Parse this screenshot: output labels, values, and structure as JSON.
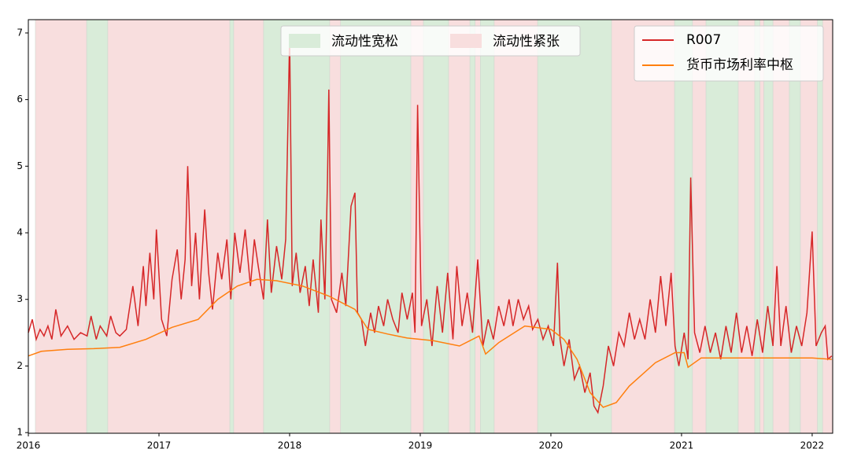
{
  "chart_data": {
    "type": "line",
    "xlim": [
      2016,
      2022.157
    ],
    "xticks": [
      2016,
      2017,
      2018,
      2019,
      2020,
      2021,
      2022
    ],
    "ylim": [
      0.99,
      7.2
    ],
    "yticks": [
      1,
      2,
      3,
      4,
      5,
      6,
      7
    ],
    "bands": [
      {
        "name": "流动性宽松",
        "color": "#d9ecd9",
        "spans": [
          [
            2016.446,
            2016.608
          ],
          [
            2017.542,
            2017.572
          ],
          [
            2017.8,
            2018.307
          ],
          [
            2018.39,
            2018.928
          ],
          [
            2019.024,
            2019.217
          ],
          [
            2019.38,
            2019.42
          ],
          [
            2019.46,
            2019.566
          ],
          [
            2019.898,
            2020.464
          ],
          [
            2020.946,
            2021.084
          ],
          [
            2021.187,
            2021.434
          ],
          [
            2021.56,
            2021.6
          ],
          [
            2021.63,
            2021.7
          ],
          [
            2021.825,
            2021.91
          ],
          [
            2022.04,
            2022.08
          ]
        ]
      },
      {
        "name": "流动性紧张",
        "color": "#f8dede",
        "spans": [
          [
            2016.054,
            2016.446
          ],
          [
            2016.608,
            2017.542
          ],
          [
            2017.572,
            2017.8
          ],
          [
            2018.307,
            2018.39
          ],
          [
            2018.928,
            2019.024
          ],
          [
            2019.217,
            2019.38
          ],
          [
            2019.42,
            2019.46
          ],
          [
            2019.566,
            2019.898
          ],
          [
            2020.464,
            2020.946
          ],
          [
            2021.084,
            2021.187
          ],
          [
            2021.434,
            2021.56
          ],
          [
            2021.6,
            2021.63
          ],
          [
            2021.7,
            2021.825
          ],
          [
            2021.91,
            2022.04
          ],
          [
            2022.08,
            2022.157
          ]
        ]
      }
    ],
    "series": [
      {
        "name": "R007",
        "color": "#d62728",
        "x": [
          2016.0,
          2016.03,
          2016.06,
          2016.09,
          2016.12,
          2016.15,
          2016.18,
          2016.21,
          2016.25,
          2016.3,
          2016.35,
          2016.4,
          2016.45,
          2016.48,
          2016.52,
          2016.55,
          2016.6,
          2016.63,
          2016.67,
          2016.7,
          2016.75,
          2016.8,
          2016.84,
          2016.88,
          2016.9,
          2016.93,
          2016.96,
          2016.98,
          2017.02,
          2017.06,
          2017.1,
          2017.14,
          2017.17,
          2017.2,
          2017.22,
          2017.25,
          2017.28,
          2017.31,
          2017.35,
          2017.38,
          2017.41,
          2017.45,
          2017.48,
          2017.52,
          2017.55,
          2017.58,
          2017.62,
          2017.66,
          2017.7,
          2017.73,
          2017.76,
          2017.8,
          2017.83,
          2017.86,
          2017.9,
          2017.94,
          2017.97,
          2018.0,
          2018.02,
          2018.05,
          2018.08,
          2018.12,
          2018.15,
          2018.18,
          2018.22,
          2018.24,
          2018.27,
          2018.29,
          2018.3,
          2018.32,
          2018.36,
          2018.4,
          2018.43,
          2018.47,
          2018.5,
          2018.52,
          2018.55,
          2018.58,
          2018.62,
          2018.65,
          2018.68,
          2018.72,
          2018.75,
          2018.79,
          2018.83,
          2018.86,
          2018.9,
          2018.94,
          2018.96,
          2018.98,
          2019.01,
          2019.05,
          2019.09,
          2019.13,
          2019.17,
          2019.21,
          2019.25,
          2019.28,
          2019.32,
          2019.36,
          2019.4,
          2019.44,
          2019.48,
          2019.52,
          2019.56,
          2019.6,
          2019.64,
          2019.68,
          2019.71,
          2019.75,
          2019.79,
          2019.83,
          2019.86,
          2019.9,
          2019.94,
          2019.98,
          2020.02,
          2020.05,
          2020.07,
          2020.1,
          2020.14,
          2020.18,
          2020.22,
          2020.26,
          2020.3,
          2020.33,
          2020.36,
          2020.4,
          2020.44,
          2020.48,
          2020.52,
          2020.56,
          2020.6,
          2020.64,
          2020.68,
          2020.72,
          2020.76,
          2020.8,
          2020.84,
          2020.88,
          2020.92,
          2020.95,
          2020.98,
          2021.02,
          2021.05,
          2021.07,
          2021.1,
          2021.14,
          2021.18,
          2021.22,
          2021.26,
          2021.3,
          2021.34,
          2021.38,
          2021.42,
          2021.46,
          2021.5,
          2021.54,
          2021.58,
          2021.62,
          2021.66,
          2021.7,
          2021.73,
          2021.76,
          2021.8,
          2021.84,
          2021.88,
          2021.92,
          2021.96,
          2022.0,
          2022.03,
          2022.07,
          2022.1,
          2022.12,
          2022.15
        ],
        "values": [
          2.5,
          2.7,
          2.4,
          2.55,
          2.45,
          2.6,
          2.4,
          2.85,
          2.45,
          2.6,
          2.4,
          2.5,
          2.45,
          2.75,
          2.4,
          2.6,
          2.45,
          2.75,
          2.5,
          2.45,
          2.55,
          3.2,
          2.6,
          3.5,
          2.9,
          3.7,
          3.0,
          4.05,
          2.7,
          2.45,
          3.3,
          3.75,
          3.0,
          3.6,
          5.0,
          3.2,
          4.0,
          3.0,
          4.35,
          3.4,
          2.85,
          3.7,
          3.3,
          3.9,
          3.0,
          4.0,
          3.4,
          4.05,
          3.2,
          3.9,
          3.5,
          3.0,
          4.2,
          3.1,
          3.8,
          3.3,
          3.9,
          6.95,
          3.2,
          3.7,
          3.1,
          3.5,
          2.9,
          3.6,
          2.8,
          4.2,
          3.0,
          4.8,
          6.15,
          3.0,
          2.8,
          3.4,
          2.9,
          4.4,
          4.6,
          2.8,
          2.7,
          2.3,
          2.8,
          2.5,
          2.9,
          2.6,
          3.0,
          2.7,
          2.5,
          3.1,
          2.7,
          3.1,
          2.5,
          5.92,
          2.6,
          3.0,
          2.3,
          3.2,
          2.5,
          3.4,
          2.4,
          3.5,
          2.6,
          3.1,
          2.5,
          3.6,
          2.3,
          2.7,
          2.4,
          2.9,
          2.6,
          3.0,
          2.6,
          3.0,
          2.7,
          2.9,
          2.55,
          2.7,
          2.4,
          2.6,
          2.3,
          3.55,
          2.4,
          2.0,
          2.4,
          1.8,
          2.0,
          1.6,
          1.9,
          1.4,
          1.3,
          1.7,
          2.3,
          2.0,
          2.5,
          2.3,
          2.8,
          2.4,
          2.7,
          2.4,
          3.0,
          2.5,
          3.35,
          2.6,
          3.4,
          2.3,
          2.0,
          2.5,
          2.1,
          4.83,
          2.5,
          2.2,
          2.6,
          2.2,
          2.5,
          2.1,
          2.6,
          2.2,
          2.8,
          2.2,
          2.6,
          2.15,
          2.7,
          2.2,
          2.9,
          2.3,
          3.5,
          2.3,
          2.9,
          2.2,
          2.6,
          2.3,
          2.8,
          4.02,
          2.3,
          2.5,
          2.6,
          2.1,
          2.15
        ]
      },
      {
        "name": "货币市场利率中枢",
        "color": "#ff7f0e",
        "x": [
          2016.0,
          2016.1,
          2016.3,
          2016.5,
          2016.7,
          2016.9,
          2017.1,
          2017.3,
          2017.45,
          2017.6,
          2017.75,
          2017.9,
          2018.1,
          2018.3,
          2018.5,
          2018.6,
          2018.75,
          2018.9,
          2019.1,
          2019.3,
          2019.45,
          2019.5,
          2019.6,
          2019.8,
          2020.0,
          2020.1,
          2020.2,
          2020.3,
          2020.4,
          2020.5,
          2020.6,
          2020.8,
          2020.95,
          2021.02,
          2021.05,
          2021.15,
          2021.3,
          2022.0,
          2022.15
        ],
        "values": [
          2.15,
          2.22,
          2.25,
          2.26,
          2.28,
          2.4,
          2.58,
          2.7,
          3.0,
          3.2,
          3.3,
          3.28,
          3.2,
          3.05,
          2.85,
          2.55,
          2.48,
          2.42,
          2.38,
          2.3,
          2.45,
          2.18,
          2.35,
          2.6,
          2.55,
          2.4,
          2.1,
          1.6,
          1.38,
          1.45,
          1.7,
          2.05,
          2.2,
          2.2,
          1.98,
          2.12,
          2.12,
          2.12,
          2.1
        ]
      }
    ]
  }
}
